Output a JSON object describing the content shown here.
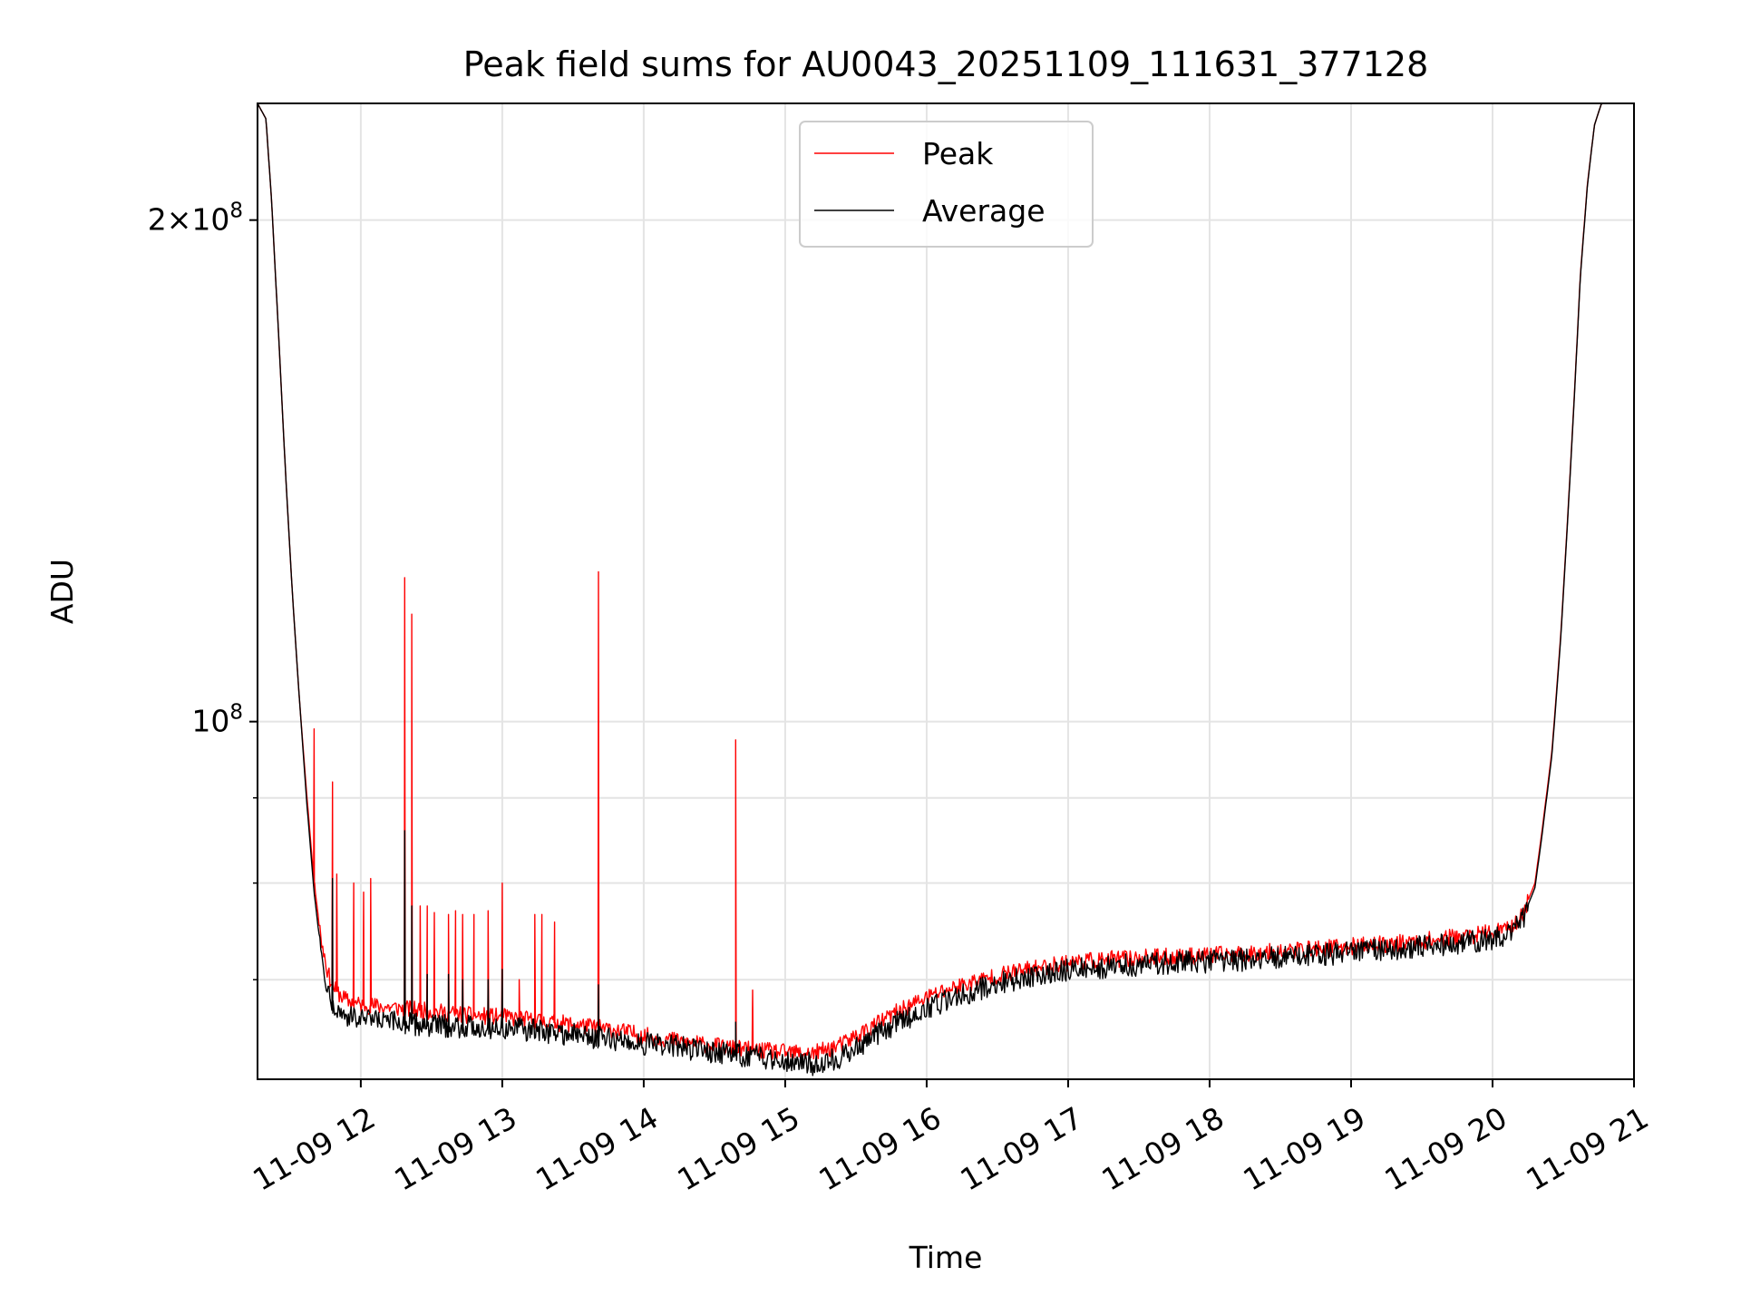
{
  "chart_data": {
    "type": "line",
    "title": "Peak field sums for AU0043_20251109_111631_377128",
    "xlabel": "Time",
    "ylabel": "ADU",
    "yscale": "log",
    "xlim": [
      11.27,
      21.0
    ],
    "ylim": [
      61000000,
      235000000
    ],
    "grid": true,
    "legend_position": "top-center",
    "x_ticks": [
      {
        "value": 12,
        "label": "11-09 12"
      },
      {
        "value": 13,
        "label": "11-09 13"
      },
      {
        "value": 14,
        "label": "11-09 14"
      },
      {
        "value": 15,
        "label": "11-09 15"
      },
      {
        "value": 16,
        "label": "11-09 16"
      },
      {
        "value": 17,
        "label": "11-09 17"
      },
      {
        "value": 18,
        "label": "11-09 18"
      },
      {
        "value": 19,
        "label": "11-09 19"
      },
      {
        "value": 20,
        "label": "11-09 20"
      },
      {
        "value": 21,
        "label": "11-09 21"
      }
    ],
    "y_major_ticks": [
      {
        "value": 100000000,
        "base": "10",
        "exp": "8",
        "mult": ""
      },
      {
        "value": 200000000,
        "base": "10",
        "exp": "8",
        "mult": "2×"
      }
    ],
    "y_minor_ticks": [
      70000000,
      80000000,
      90000000
    ],
    "series": [
      {
        "name": "Peak",
        "color": "#ff0000",
        "x": [
          11.27,
          11.33,
          11.37,
          11.42,
          11.47,
          11.52,
          11.57,
          11.62,
          11.67,
          11.72,
          11.77,
          11.82,
          11.9,
          12.0,
          12.2,
          12.5,
          12.8,
          13.0,
          13.2,
          13.5,
          13.8,
          14.0,
          14.3,
          14.6,
          14.8,
          15.0,
          15.2,
          15.4,
          15.6,
          15.8,
          16.0,
          16.2,
          16.5,
          16.8,
          17.0,
          17.3,
          17.6,
          18.0,
          18.3,
          18.6,
          19.0,
          19.3,
          19.6,
          19.9,
          20.1,
          20.2,
          20.3,
          20.35,
          20.42,
          20.48,
          20.53,
          20.58,
          20.62,
          20.67,
          20.72,
          20.77,
          21.0
        ],
        "y": [
          235000000,
          230000000,
          205000000,
          170000000,
          140000000,
          118000000,
          102000000,
          90000000,
          80000000,
          74000000,
          70500000,
          69000000,
          68000000,
          67600000,
          67400000,
          67000000,
          66600000,
          66500000,
          66200000,
          65800000,
          65300000,
          64800000,
          64200000,
          63700000,
          63500000,
          63300000,
          63200000,
          64000000,
          65500000,
          67000000,
          68300000,
          69300000,
          70400000,
          71200000,
          71700000,
          72000000,
          72200000,
          72400000,
          72600000,
          72900000,
          73300000,
          73600000,
          74000000,
          74500000,
          75000000,
          76200000,
          80000000,
          86000000,
          96000000,
          112000000,
          132000000,
          158000000,
          185000000,
          210000000,
          228000000,
          235000000,
          235000000
        ],
        "spikes": [
          [
            11.67,
            99000000
          ],
          [
            11.8,
            92000000
          ],
          [
            11.83,
            81000000
          ],
          [
            11.95,
            80000000
          ],
          [
            12.02,
            79000000
          ],
          [
            12.07,
            80500000
          ],
          [
            12.31,
            122000000
          ],
          [
            12.36,
            116000000
          ],
          [
            12.42,
            77500000
          ],
          [
            12.47,
            77500000
          ],
          [
            12.52,
            76800000
          ],
          [
            12.62,
            76600000
          ],
          [
            12.67,
            77000000
          ],
          [
            12.72,
            76600000
          ],
          [
            12.8,
            76600000
          ],
          [
            12.9,
            77000000
          ],
          [
            13.0,
            80000000
          ],
          [
            13.12,
            70000000
          ],
          [
            13.23,
            76600000
          ],
          [
            13.28,
            76600000
          ],
          [
            13.37,
            75800000
          ],
          [
            13.68,
            123000000
          ],
          [
            14.65,
            97500000
          ],
          [
            14.77,
            69000000
          ]
        ]
      },
      {
        "name": "Average",
        "color": "#000000",
        "x": [
          11.27,
          11.33,
          11.37,
          11.42,
          11.47,
          11.52,
          11.57,
          11.62,
          11.67,
          11.72,
          11.77,
          11.82,
          11.9,
          12.0,
          12.2,
          12.5,
          12.8,
          13.0,
          13.2,
          13.5,
          13.8,
          14.0,
          14.3,
          14.6,
          14.8,
          15.0,
          15.2,
          15.4,
          15.6,
          15.8,
          16.0,
          16.2,
          16.5,
          16.8,
          17.0,
          17.3,
          17.6,
          18.0,
          18.3,
          18.6,
          19.0,
          19.3,
          19.6,
          19.9,
          20.1,
          20.2,
          20.3,
          20.35,
          20.42,
          20.48,
          20.53,
          20.58,
          20.62,
          20.67,
          20.72,
          20.77,
          21.0
        ],
        "y": [
          235000000,
          230000000,
          205000000,
          170000000,
          140000000,
          118000000,
          102000000,
          89000000,
          79000000,
          72500000,
          69000000,
          67300000,
          66600000,
          66200000,
          66000000,
          65700000,
          65600000,
          65500000,
          65300000,
          64900000,
          64400000,
          64100000,
          63700000,
          63200000,
          62900000,
          62700000,
          62300000,
          62900000,
          64500000,
          66000000,
          67300000,
          68400000,
          69600000,
          70500000,
          71000000,
          71300000,
          71600000,
          71800000,
          72000000,
          72300000,
          72700000,
          73000000,
          73400000,
          73900000,
          74400000,
          75700000,
          79500000,
          85500000,
          95500000,
          111500000,
          131500000,
          157500000,
          184500000,
          209500000,
          228000000,
          235000000,
          235000000
        ],
        "spikes": [
          [
            11.8,
            80500000
          ],
          [
            12.31,
            86000000
          ],
          [
            12.36,
            77500000
          ],
          [
            12.47,
            70500000
          ],
          [
            12.62,
            70500000
          ],
          [
            12.72,
            70000000
          ],
          [
            12.9,
            70000000
          ],
          [
            13.0,
            71000000
          ],
          [
            13.68,
            69500000
          ],
          [
            14.65,
            66000000
          ]
        ]
      }
    ]
  }
}
